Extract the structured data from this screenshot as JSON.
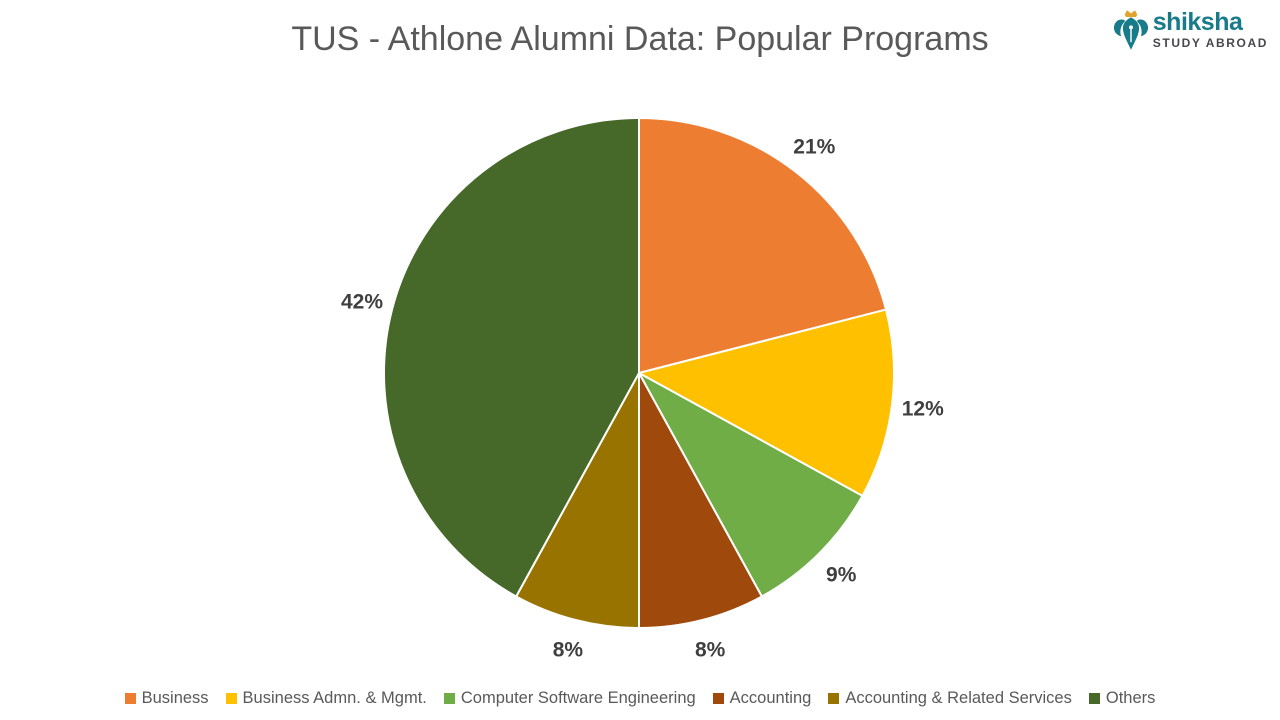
{
  "page": {
    "title": "TUS - Athlone Alumni Data: Popular Programs"
  },
  "logo": {
    "brand": "shiksha",
    "tagline": "STUDY ABROAD",
    "brand_color": "#177B8A",
    "tagline_color": "#47474F",
    "crown_color": "#E2A32C",
    "icon": "pen-nib-wings-icon"
  },
  "chart_data": {
    "type": "pie",
    "title": "TUS - Athlone Alumni Data: Popular Programs",
    "unit": "percent",
    "start_angle_deg": 0,
    "direction": "clockwise",
    "categories": [
      "Business",
      "Business Admn. & Mgmt.",
      "Computer Software Engineering",
      "Accounting",
      "Accounting & Related Services",
      "Others"
    ],
    "values": [
      21,
      12,
      9,
      8,
      8,
      42
    ],
    "colors": [
      "#ED7D31",
      "#FFC000",
      "#70AD47",
      "#A0490D",
      "#997300",
      "#466929"
    ],
    "data_labels": [
      "21%",
      "12%",
      "9%",
      "8%",
      "8%",
      "42%"
    ],
    "data_label_position": "outside",
    "data_label_color": "#3F3F3F",
    "slice_border_color": "#FFFFFF",
    "legend_position": "bottom",
    "legend_text_color": "#595959"
  }
}
